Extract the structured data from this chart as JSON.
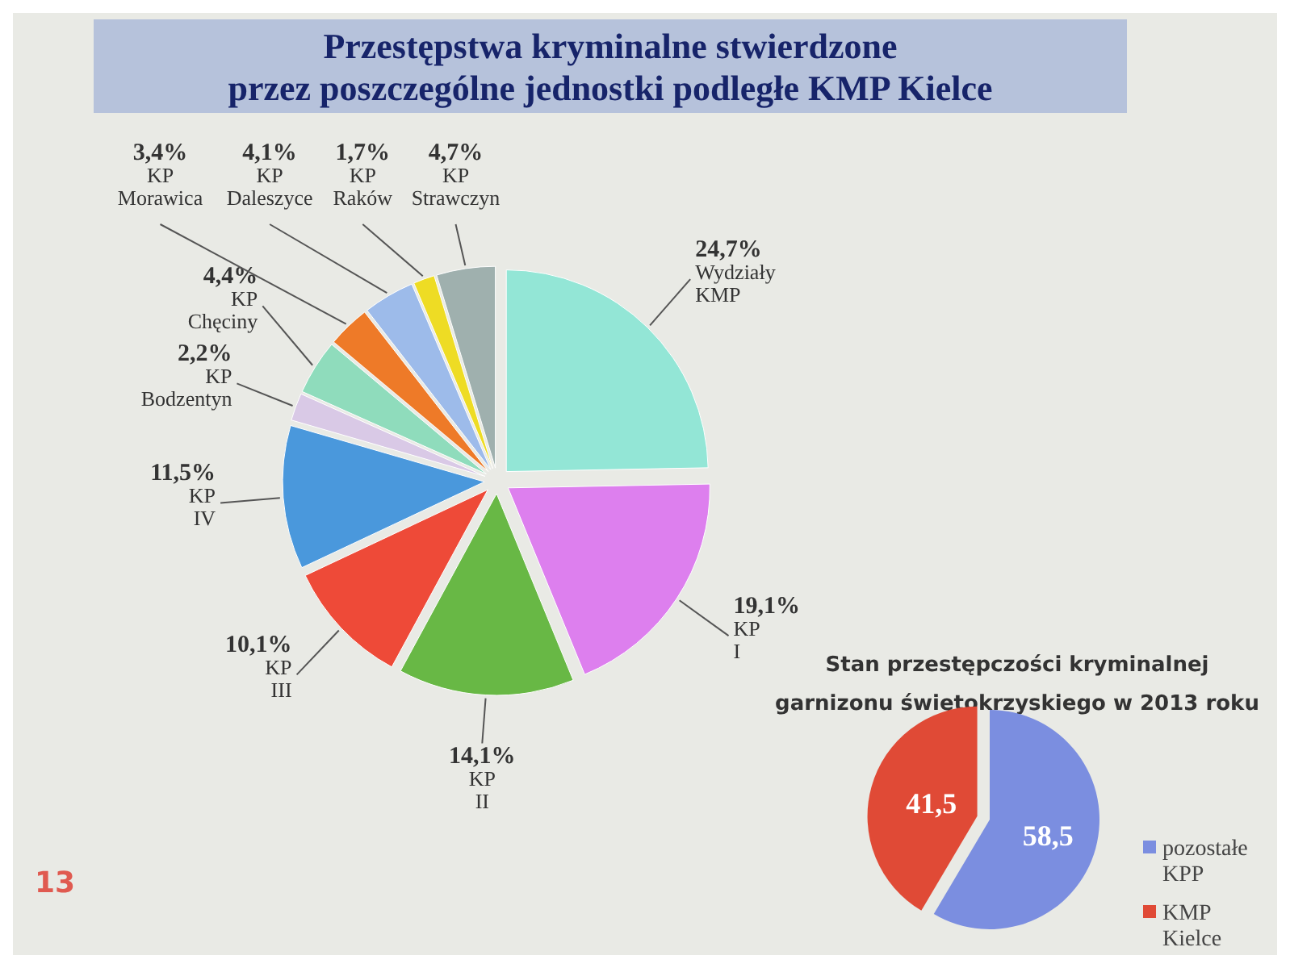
{
  "chart_data": [
    {
      "type": "pie",
      "title": "Przestępstwa kryminalne stwierdzone\nprzez poszczególne jednostki podległe KMP Kielce",
      "categories": [
        "Wydziały KMP",
        "KP I",
        "KP II",
        "KP III",
        "KP IV",
        "KP Bodzentyn",
        "KP Chęciny",
        "KP Morawica",
        "KP Daleszyce",
        "KP Raków",
        "KP Strawczyn"
      ],
      "values": [
        24.7,
        19.1,
        14.1,
        10.1,
        11.5,
        2.2,
        4.4,
        3.4,
        4.1,
        1.7,
        4.7
      ],
      "value_labels": [
        "24,7%",
        "19,1%",
        "14,1%",
        "10,1%",
        "11,5%",
        "2,2%",
        "4,4%",
        "3,4%",
        "4,1%",
        "1,7%",
        "4,7%"
      ],
      "colors": [
        "#93e6d6",
        "#dd7fee",
        "#68b845",
        "#ee4a38",
        "#4a98dc",
        "#d9c9e6",
        "#8fdcbc",
        "#ee7a28",
        "#9dbbea",
        "#eedc24",
        "#9fb0ae"
      ],
      "annotations": [
        "13"
      ]
    },
    {
      "type": "pie",
      "title": "Stan przestępczości  kryminalnej\ngarnizonu świętokrzyskiego  w 2013 roku",
      "categories": [
        "pozostałe KPP",
        "KMP Kielce"
      ],
      "values": [
        58.5,
        41.5
      ],
      "value_labels": [
        "58,5",
        "41,5"
      ],
      "colors": [
        "#7b8ee0",
        "#e04a36"
      ],
      "legend": "right"
    }
  ]
}
